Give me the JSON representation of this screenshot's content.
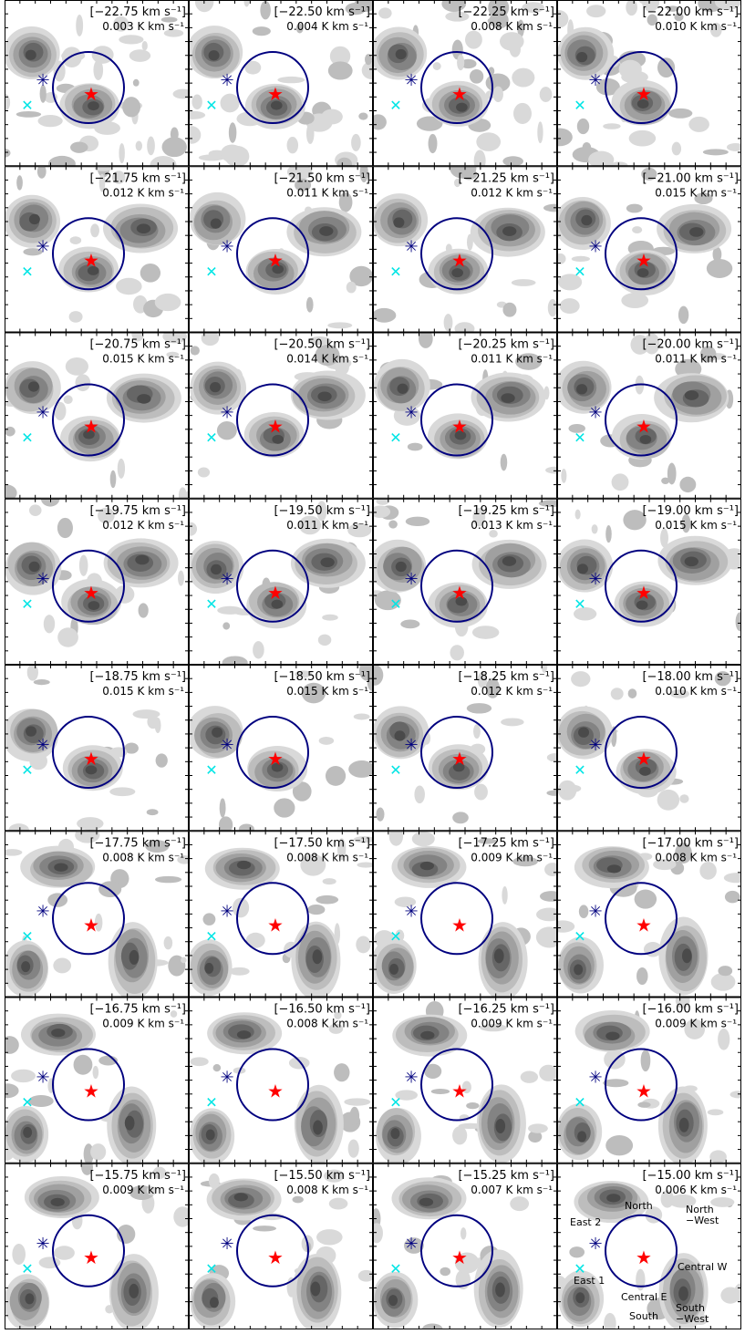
{
  "chart_data": {
    "type": "heatmap",
    "rows": 8,
    "cols": 4,
    "colors": {
      "circle": "#00007f",
      "star": "#ff0000",
      "asterisk": "#00007f",
      "cross": "#00e5e5",
      "emission_levels": [
        "#d9d9d9",
        "#bdbdbd",
        "#a0a0a0",
        "#838383",
        "#666666",
        "#4a4a4a"
      ]
    },
    "markers": [
      "red-star-icon",
      "navy-asterisk-icon",
      "cyan-cross-icon",
      "navy-circle"
    ],
    "panels": [
      {
        "velocity": "[−22.75 km s⁻¹]",
        "noise": "0.003 K km s⁻¹"
      },
      {
        "velocity": "[−22.50 km s⁻¹]",
        "noise": "0.004 K km s⁻¹"
      },
      {
        "velocity": "[−22.25 km s⁻¹]",
        "noise": "0.008 K km s⁻¹"
      },
      {
        "velocity": "[−22.00 km s⁻¹]",
        "noise": "0.010 K km s⁻¹"
      },
      {
        "velocity": "[−21.75 km s⁻¹]",
        "noise": "0.012 K km s⁻¹"
      },
      {
        "velocity": "[−21.50 km s⁻¹]",
        "noise": "0.011 K km s⁻¹"
      },
      {
        "velocity": "[−21.25 km s⁻¹]",
        "noise": "0.012 K km s⁻¹"
      },
      {
        "velocity": "[−21.00 km s⁻¹]",
        "noise": "0.015 K km s⁻¹"
      },
      {
        "velocity": "[−20.75 km s⁻¹]",
        "noise": "0.015 K km s⁻¹"
      },
      {
        "velocity": "[−20.50 km s⁻¹]",
        "noise": "0.014 K km s⁻¹"
      },
      {
        "velocity": "[−20.25 km s⁻¹]",
        "noise": "0.011 K km s⁻¹"
      },
      {
        "velocity": "[−20.00 km s⁻¹]",
        "noise": "0.011 K km s⁻¹"
      },
      {
        "velocity": "[−19.75 km s⁻¹]",
        "noise": "0.012 K km s⁻¹"
      },
      {
        "velocity": "[−19.50 km s⁻¹]",
        "noise": "0.011 K km s⁻¹"
      },
      {
        "velocity": "[−19.25 km s⁻¹]",
        "noise": "0.013 K km s⁻¹"
      },
      {
        "velocity": "[−19.00 km s⁻¹]",
        "noise": "0.015 K km s⁻¹"
      },
      {
        "velocity": "[−18.75 km s⁻¹]",
        "noise": "0.015 K km s⁻¹"
      },
      {
        "velocity": "[−18.50 km s⁻¹]",
        "noise": "0.015 K km s⁻¹"
      },
      {
        "velocity": "[−18.25 km s⁻¹]",
        "noise": "0.012 K km s⁻¹"
      },
      {
        "velocity": "[−18.00 km s⁻¹]",
        "noise": "0.010 K km s⁻¹"
      },
      {
        "velocity": "[−17.75 km s⁻¹]",
        "noise": "0.008 K km s⁻¹"
      },
      {
        "velocity": "[−17.50 km s⁻¹]",
        "noise": "0.008 K km s⁻¹"
      },
      {
        "velocity": "[−17.25 km s⁻¹]",
        "noise": "0.009 K km s⁻¹"
      },
      {
        "velocity": "[−17.00 km s⁻¹]",
        "noise": "0.008 K km s⁻¹"
      },
      {
        "velocity": "[−16.75 km s⁻¹]",
        "noise": "0.009 K km s⁻¹"
      },
      {
        "velocity": "[−16.50 km s⁻¹]",
        "noise": "0.008 K km s⁻¹"
      },
      {
        "velocity": "[−16.25 km s⁻¹]",
        "noise": "0.009 K km s⁻¹"
      },
      {
        "velocity": "[−16.00 km s⁻¹]",
        "noise": "0.009 K km s⁻¹"
      },
      {
        "velocity": "[−15.75 km s⁻¹]",
        "noise": "0.009 K km s⁻¹"
      },
      {
        "velocity": "[−15.50 km s⁻¹]",
        "noise": "0.008 K km s⁻¹"
      },
      {
        "velocity": "[−15.25 km s⁻¹]",
        "noise": "0.007 K km s⁻¹"
      },
      {
        "velocity": "[−15.00 km s⁻¹]",
        "noise": "0.006 K km s⁻¹"
      }
    ],
    "region_labels": {
      "north": "North",
      "north_west": [
        "North",
        "−West"
      ],
      "east_2": "East 2",
      "east_1": "East 1",
      "central_w": "Central W",
      "central_e": "Central E",
      "south": "South",
      "south_west": [
        "South",
        "−West"
      ]
    }
  }
}
